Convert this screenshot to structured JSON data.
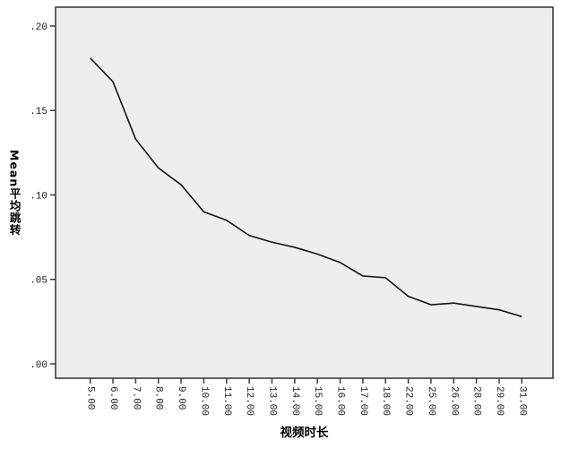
{
  "chart_data": {
    "type": "line",
    "title": "",
    "xlabel": "视频时长",
    "ylabel": "Mean平均跳转",
    "categories": [
      "5.00",
      "6.00",
      "7.00",
      "8.00",
      "9.00",
      "10.00",
      "11.00",
      "12.00",
      "13.00",
      "14.00",
      "15.00",
      "16.00",
      "17.00",
      "18.00",
      "22.00",
      "25.00",
      "26.00",
      "28.00",
      "29.00",
      "31.00"
    ],
    "values": [
      0.181,
      0.167,
      0.133,
      0.116,
      0.106,
      0.09,
      0.085,
      0.076,
      0.072,
      0.069,
      0.065,
      0.06,
      0.052,
      0.051,
      0.04,
      0.035,
      0.036,
      0.034,
      0.032,
      0.028
    ],
    "ylim": [
      0.0,
      0.2
    ],
    "yticks": [
      0.0,
      0.05,
      0.1,
      0.15,
      0.2
    ],
    "ytick_labels": [
      ".00",
      ".05",
      ".10",
      ".15",
      ".20"
    ],
    "x_tick_rotation_deg": 90,
    "grid": "off",
    "legend": "none"
  },
  "colors": {
    "page_bg": "#ffffff",
    "plot_bg": "#eeeeee",
    "frame": "#3c3c3c",
    "line": "#141414",
    "text": "#000000"
  }
}
